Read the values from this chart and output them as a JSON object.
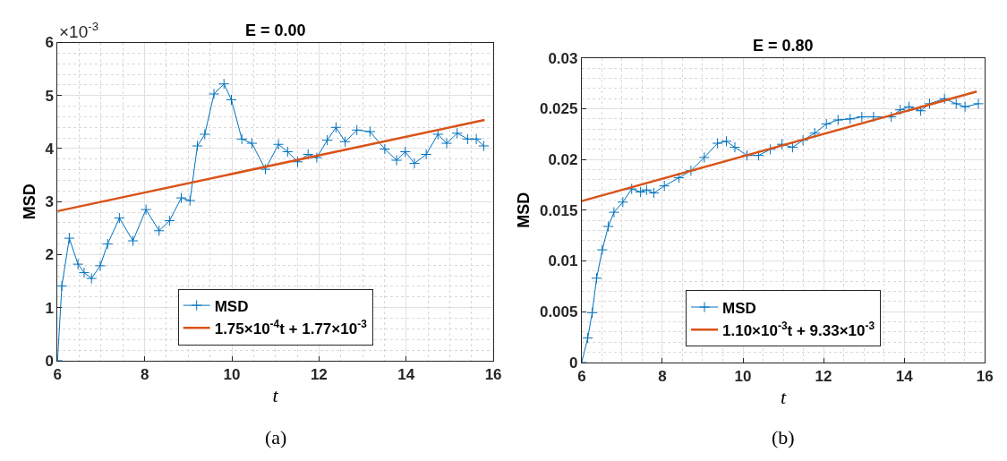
{
  "chart_data": [
    {
      "type": "line",
      "title": "E = 0.00",
      "xlabel": "t",
      "ylabel": "MSD",
      "xlim": [
        6,
        16
      ],
      "xticks": [
        6,
        8,
        10,
        12,
        14,
        16
      ],
      "ylim": [
        0,
        6
      ],
      "yticks": [
        0,
        1,
        2,
        3,
        4,
        5,
        6
      ],
      "grid": true,
      "legend": "bottom",
      "annotations": [
        "×10$^{-3}$",
        "(a)"
      ],
      "series": [
        {
          "name": "MSD",
          "color": "#0072bd",
          "marker": "cross",
          "line_style": "solid",
          "x": [
            6.0,
            6.1,
            6.27,
            6.47,
            6.61,
            6.78,
            6.98,
            7.15,
            7.42,
            7.73,
            8.03,
            8.33,
            8.57,
            8.84,
            9.04,
            9.21,
            9.38,
            9.59,
            9.82,
            9.99,
            10.23,
            10.46,
            10.77,
            11.07,
            11.28,
            11.51,
            11.75,
            11.95,
            12.19,
            12.39,
            12.6,
            12.87,
            13.17,
            13.51,
            13.78,
            13.98,
            14.19,
            14.46,
            14.73,
            14.93,
            15.17,
            15.41,
            15.61,
            15.78
          ],
          "values": [
            0,
            1.41,
            2.31,
            1.82,
            1.66,
            1.55,
            1.79,
            2.2,
            2.69,
            2.26,
            2.85,
            2.45,
            2.64,
            3.07,
            3.02,
            4.05,
            4.27,
            5.03,
            5.22,
            4.92,
            4.18,
            4.1,
            3.61,
            4.08,
            3.94,
            3.75,
            3.89,
            3.83,
            4.16,
            4.4,
            4.13,
            4.35,
            4.32,
            3.99,
            3.78,
            3.94,
            3.72,
            3.89,
            4.27,
            4.1,
            4.29,
            4.18,
            4.18,
            4.05
          ]
        },
        {
          "name": "1.75×10$^{-4}$t + 1.77×10$^{-3}$",
          "color": "#d95319",
          "marker": "none",
          "line_style": "solid",
          "x": [
            6,
            15.8
          ],
          "values": [
            2.82,
            4.54
          ]
        }
      ]
    },
    {
      "type": "line",
      "title": "E = 0.80",
      "xlabel": "t",
      "ylabel": "MSD",
      "xlim": [
        6,
        16
      ],
      "xticks": [
        6,
        8,
        10,
        12,
        14,
        16
      ],
      "ylim": [
        0,
        0.03
      ],
      "yticks": [
        0,
        0.005,
        0.01,
        0.015,
        0.02,
        0.025,
        0.03
      ],
      "grid": true,
      "legend": "bottom",
      "annotations": [
        "(b)"
      ],
      "series": [
        {
          "name": "MSD",
          "color": "#0072bd",
          "marker": "cross",
          "line_style": "solid",
          "x": [
            6.0,
            6.15,
            6.26,
            6.37,
            6.51,
            6.66,
            6.8,
            7.02,
            7.24,
            7.46,
            7.61,
            7.79,
            8.05,
            8.41,
            8.71,
            9.04,
            9.37,
            9.59,
            9.8,
            10.1,
            10.39,
            10.68,
            10.97,
            11.23,
            11.49,
            11.78,
            12.07,
            12.36,
            12.66,
            12.95,
            13.24,
            13.68,
            13.9,
            14.12,
            14.41,
            14.63,
            15.0,
            15.29,
            15.51,
            15.84
          ],
          "values": [
            0,
            0.0024,
            0.0049,
            0.0083,
            0.0111,
            0.0134,
            0.0148,
            0.0158,
            0.0171,
            0.0168,
            0.017,
            0.0167,
            0.0174,
            0.0182,
            0.0189,
            0.0202,
            0.0216,
            0.0218,
            0.0212,
            0.0204,
            0.0204,
            0.021,
            0.0215,
            0.0212,
            0.0219,
            0.0226,
            0.0235,
            0.0239,
            0.024,
            0.0242,
            0.0242,
            0.0242,
            0.0249,
            0.0252,
            0.0248,
            0.0255,
            0.026,
            0.0255,
            0.0252,
            0.0255
          ]
        },
        {
          "name": "1.10×10$^{-3}$t + 9.33×10$^{-3}$",
          "color": "#d95319",
          "marker": "none",
          "line_style": "solid",
          "x": [
            6,
            15.8
          ],
          "values": [
            0.0159,
            0.0267
          ]
        }
      ]
    }
  ]
}
